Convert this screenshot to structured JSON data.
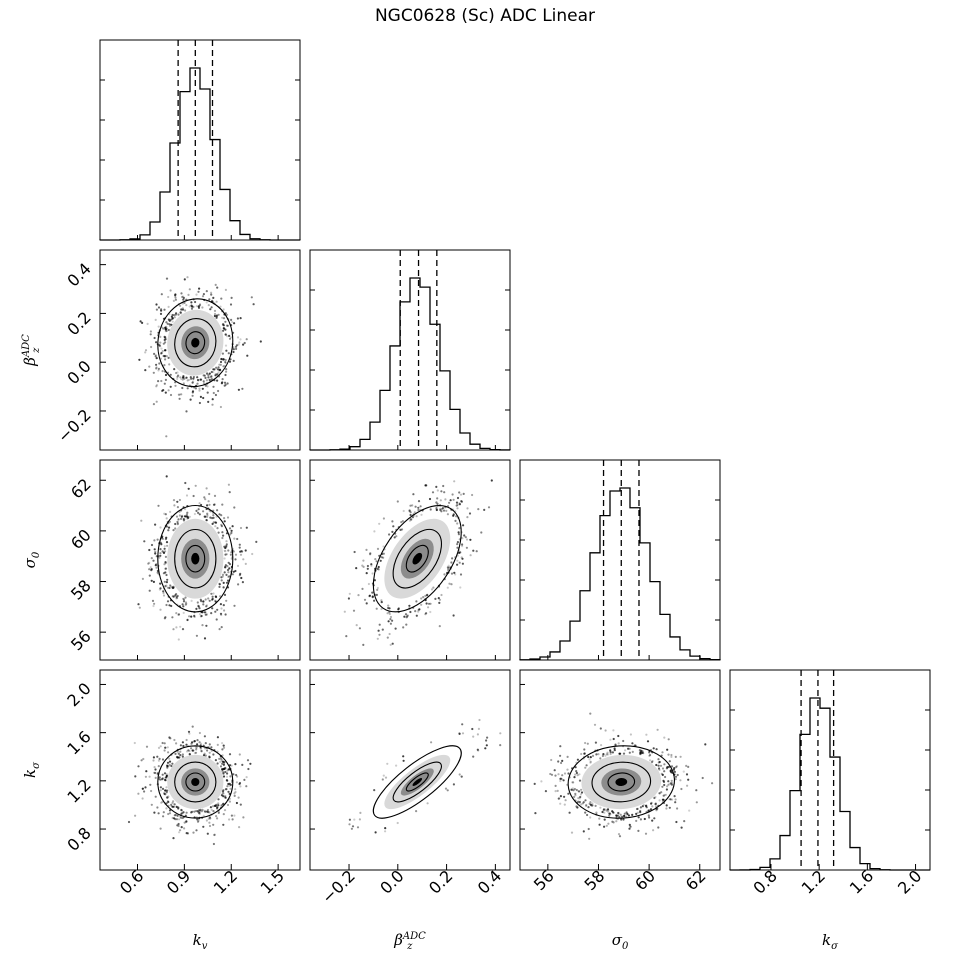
{
  "figure": {
    "title": "NGC0628 (Sc) ADC Linear"
  },
  "chart_data": {
    "type": "corner",
    "title": "NGC0628 (Sc) ADC Linear",
    "parameters": [
      {
        "key": "kv",
        "label": "k",
        "label_sub": "v",
        "label_sup": "",
        "range": [
          0.36,
          1.64
        ],
        "ticks": [
          0.6,
          0.9,
          1.2,
          1.5
        ],
        "tick_labels": [
          "0.6",
          "0.9",
          "1.2",
          "1.5"
        ],
        "mean": 0.97,
        "sd": 0.12,
        "quantiles": [
          0.86,
          0.97,
          1.08
        ]
      },
      {
        "key": "beta",
        "label": "β",
        "label_sub": "z",
        "label_sup": "ADC",
        "range": [
          -0.36,
          0.46
        ],
        "ticks": [
          -0.2,
          0.0,
          0.2,
          0.4
        ],
        "tick_labels": [
          "−0.2",
          "0.0",
          "0.2",
          "0.4"
        ],
        "mean": 0.08,
        "sd": 0.09,
        "quantiles": [
          0.01,
          0.085,
          0.16
        ]
      },
      {
        "key": "sigma0",
        "label": "σ",
        "label_sub": "0",
        "label_sup": "",
        "range": [
          54.9,
          62.8
        ],
        "ticks": [
          56,
          58,
          60,
          62
        ],
        "tick_labels": [
          "56",
          "58",
          "60",
          "62"
        ],
        "mean": 58.9,
        "sd": 1.05,
        "quantiles": [
          58.2,
          58.9,
          59.6
        ]
      },
      {
        "key": "ksigma",
        "label": "k",
        "label_sub": "σ",
        "label_sup": "",
        "range": [
          0.46,
          2.12
        ],
        "ticks": [
          0.8,
          1.2,
          1.6,
          2.0
        ],
        "tick_labels": [
          "0.8",
          "1.2",
          "1.6",
          "2.0"
        ],
        "mean": 1.19,
        "sd": 0.15,
        "quantiles": [
          1.05,
          1.19,
          1.32
        ]
      }
    ],
    "correlations": [
      {
        "pair": [
          "beta",
          "kv"
        ],
        "rho": 0.05
      },
      {
        "pair": [
          "sigma0",
          "kv"
        ],
        "rho": 0.0
      },
      {
        "pair": [
          "sigma0",
          "beta"
        ],
        "rho": 0.5
      },
      {
        "pair": [
          "ksigma",
          "kv"
        ],
        "rho": 0.0
      },
      {
        "pair": [
          "ksigma",
          "beta"
        ],
        "rho": 0.8
      },
      {
        "pair": [
          "ksigma",
          "sigma0"
        ],
        "rho": 0.05
      }
    ],
    "histogram_bins": 20,
    "quantile_lines": "dashed",
    "grid": false
  }
}
